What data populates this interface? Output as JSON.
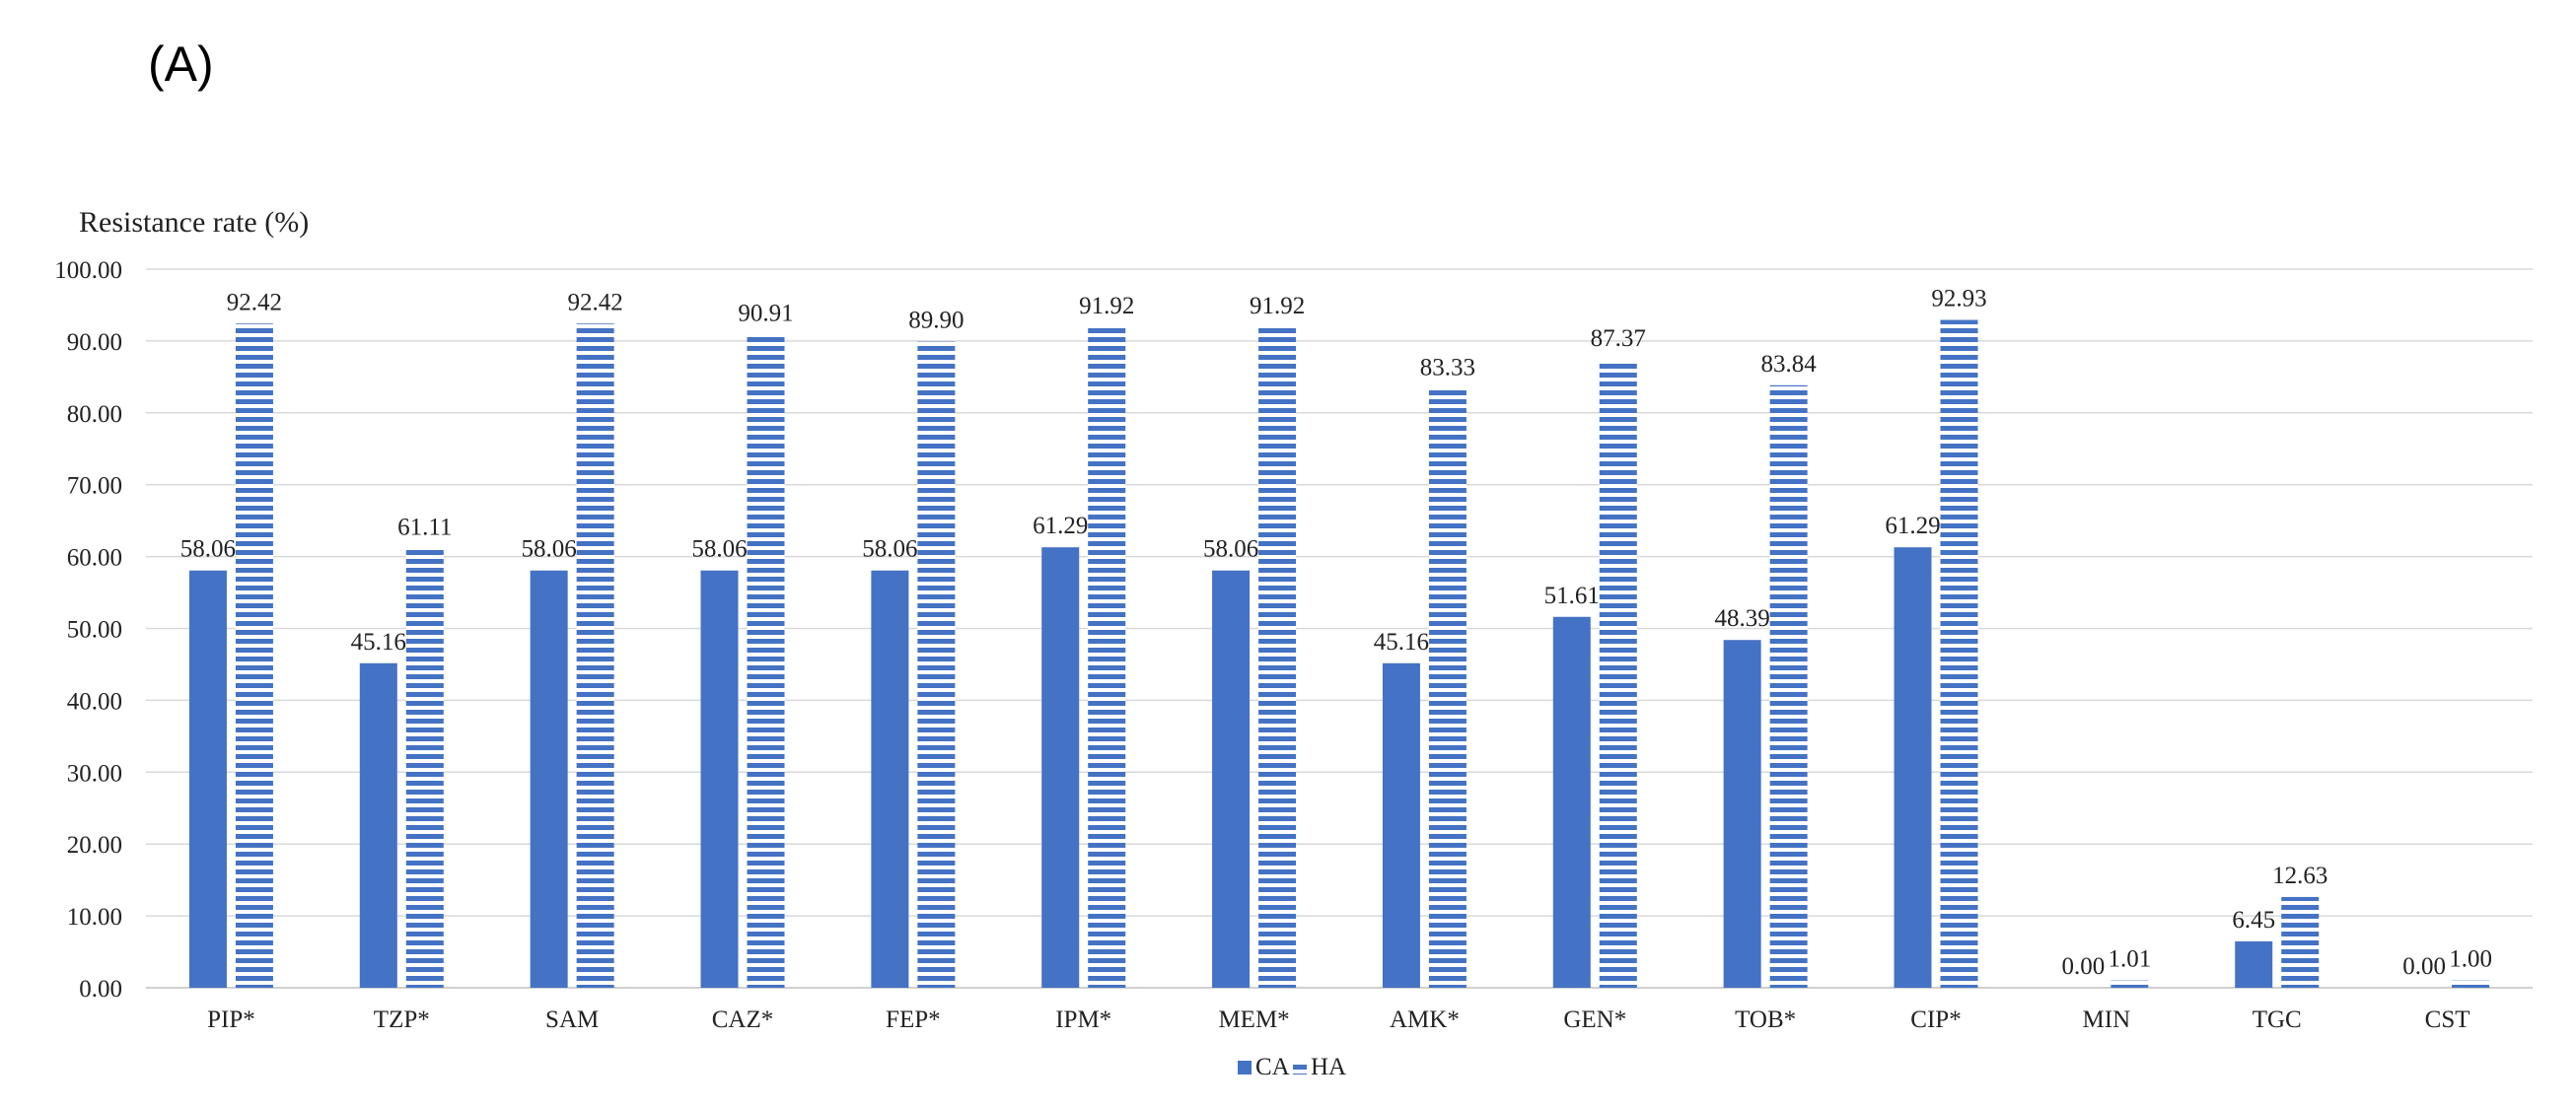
{
  "panel_label": "(A)",
  "chart_data": {
    "type": "bar",
    "title": "",
    "ylabel": "Resistance rate (%)",
    "xlabel": "",
    "ylim": [
      0,
      100
    ],
    "yticks": [
      "0.00",
      "10.00",
      "20.00",
      "30.00",
      "40.00",
      "50.00",
      "60.00",
      "70.00",
      "80.00",
      "90.00",
      "100.00"
    ],
    "grid": true,
    "legend_position": "bottom-center",
    "categories": [
      "PIP*",
      "TZP*",
      "SAM",
      "CAZ*",
      "FEP*",
      "IPM*",
      "MEM*",
      "AMK*",
      "GEN*",
      "TOB*",
      "CIP*",
      "MIN",
      "TGC",
      "CST"
    ],
    "series": [
      {
        "name": "CA",
        "fill": "solid",
        "color": "#4472c4",
        "values": [
          58.06,
          45.16,
          58.06,
          58.06,
          58.06,
          61.29,
          58.06,
          45.16,
          51.61,
          48.39,
          61.29,
          0.0,
          6.45,
          0.0
        ],
        "labels": [
          "58.06",
          "45.16",
          "58.06",
          "58.06",
          "58.06",
          "61.29",
          "58.06",
          "45.16",
          "51.61",
          "48.39",
          "61.29",
          "0.00",
          "6.45",
          "0.00"
        ]
      },
      {
        "name": "HA",
        "fill": "horizontal-stripes",
        "color": "#4472c4",
        "values": [
          92.42,
          61.11,
          92.42,
          90.91,
          89.9,
          91.92,
          91.92,
          83.33,
          87.37,
          83.84,
          92.93,
          1.01,
          12.63,
          1.0
        ],
        "labels": [
          "92.42",
          "61.11",
          "92.42",
          "90.91",
          "89.90",
          "91.92",
          "91.92",
          "83.33",
          "87.37",
          "83.84",
          "92.93",
          "1.01",
          "12.63",
          "1.00"
        ]
      }
    ]
  }
}
